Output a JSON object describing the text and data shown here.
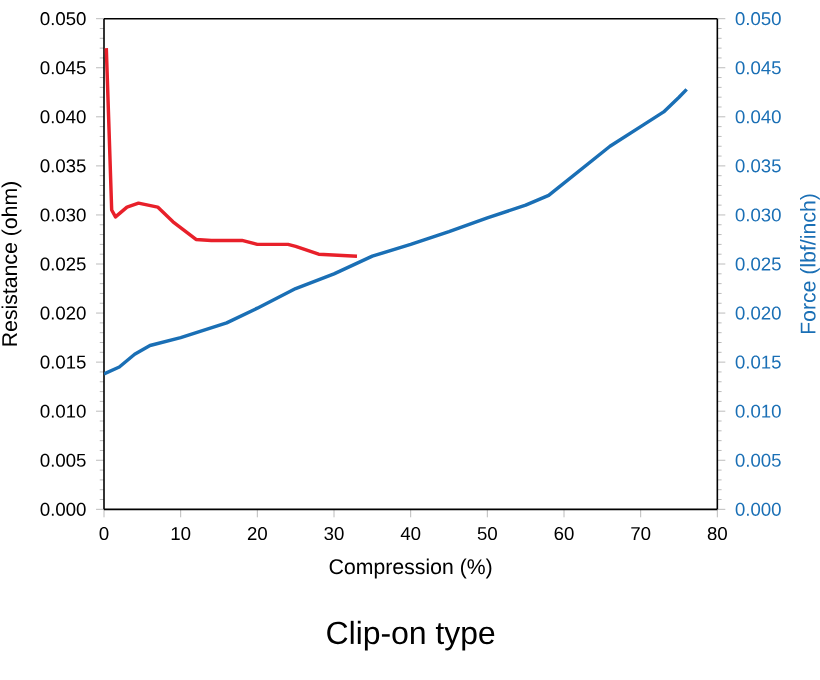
{
  "chart_data": {
    "type": "line",
    "title": "Clip-on type",
    "xlabel": "Compression (%)",
    "ylabel": "Resistance (ohm)",
    "y2label": "Force (lbf/inch)",
    "xlim": [
      0,
      80
    ],
    "xticks": [
      0,
      10,
      20,
      30,
      40,
      50,
      60,
      70,
      80
    ],
    "ylim": [
      0,
      0.05
    ],
    "yticks": [
      {
        "value": 0,
        "label": "0.000"
      },
      {
        "value": 0.005,
        "label": "0.005"
      },
      {
        "value": 0.01,
        "label": "0.010"
      },
      {
        "value": 0.015,
        "label": "0.015"
      },
      {
        "value": 0.02,
        "label": "0.020"
      },
      {
        "value": 0.025,
        "label": "0.025"
      },
      {
        "value": 0.03,
        "label": "0.030"
      },
      {
        "value": 0.035,
        "label": "0.035"
      },
      {
        "value": 0.04,
        "label": "0.040"
      },
      {
        "value": 0.045,
        "label": "0.045"
      },
      {
        "value": 0.05,
        "label": "0.050"
      }
    ],
    "y2lim": [
      0,
      0.05
    ],
    "y2ticks": [
      {
        "value": 0,
        "label": "0.000"
      },
      {
        "value": 0.005,
        "label": "0.005"
      },
      {
        "value": 0.01,
        "label": "0.010"
      },
      {
        "value": 0.015,
        "label": "0.015"
      },
      {
        "value": 0.02,
        "label": "0.020"
      },
      {
        "value": 0.025,
        "label": "0.025"
      },
      {
        "value": 0.03,
        "label": "0.030"
      },
      {
        "value": 0.035,
        "label": "0.035"
      },
      {
        "value": 0.04,
        "label": "0.040"
      },
      {
        "value": 0.045,
        "label": "0.045"
      },
      {
        "value": 0.05,
        "label": "0.050"
      }
    ],
    "grid": false,
    "series": [
      {
        "color": "#e8202a",
        "x": [
          0.3,
          0.6,
          1,
          1.5,
          3,
          4.5,
          7,
          9,
          12,
          14,
          18,
          20,
          24,
          25,
          28,
          33
        ],
        "values": [
          0.047,
          0.04,
          0.0305,
          0.0298,
          0.0308,
          0.0312,
          0.0308,
          0.0293,
          0.0275,
          0.0274,
          0.0274,
          0.027,
          0.027,
          0.0268,
          0.026,
          0.0258
        ]
      },
      {
        "color": "#1a6fb5",
        "axis": "y2",
        "x": [
          0,
          2,
          4,
          6,
          10,
          16,
          20,
          25,
          30,
          35,
          40,
          45,
          50,
          55,
          58,
          62,
          66,
          70,
          73,
          75,
          76
        ],
        "values": [
          0.0138,
          0.0145,
          0.0158,
          0.0167,
          0.0175,
          0.019,
          0.0205,
          0.0225,
          0.024,
          0.0258,
          0.027,
          0.0283,
          0.0297,
          0.031,
          0.032,
          0.0345,
          0.037,
          0.039,
          0.0405,
          0.042,
          0.0428
        ]
      }
    ]
  }
}
